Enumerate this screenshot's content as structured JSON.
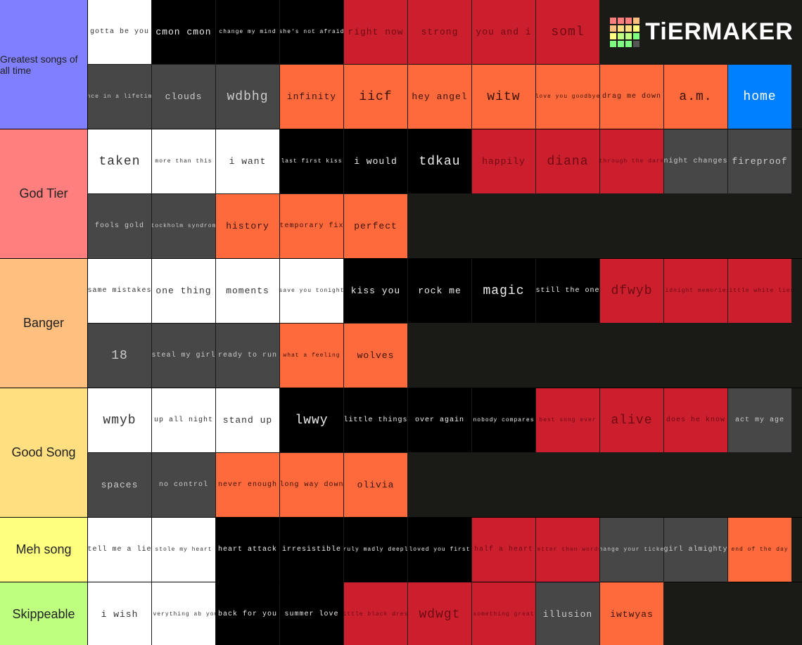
{
  "logo": "TiERMAKER",
  "tiers": [
    {
      "label": "Greatest songs of all time",
      "color": "#7f7fff",
      "items": [
        {
          "label": "gotta be you",
          "bg": "#ffffff"
        },
        {
          "label": "cmon cmon",
          "bg": "#000000"
        },
        {
          "label": "change my mind",
          "bg": "#000000"
        },
        {
          "label": "she's not afraid",
          "bg": "#000000"
        },
        {
          "label": "right now",
          "bg": "#cc1f2e"
        },
        {
          "label": "strong",
          "bg": "#cc1f2e"
        },
        {
          "label": "you and i",
          "bg": "#cc1f2e"
        },
        {
          "label": "soml",
          "bg": "#cc1f2e"
        },
        {
          "label": "once in a lifetime",
          "bg": "#474747"
        },
        {
          "label": "clouds",
          "bg": "#474747"
        },
        {
          "label": "wdbhg",
          "bg": "#474747"
        },
        {
          "label": "infinity",
          "bg": "#ff6a3d"
        },
        {
          "label": "iicf",
          "bg": "#ff6a3d"
        },
        {
          "label": "hey angel",
          "bg": "#ff6a3d"
        },
        {
          "label": "witw",
          "bg": "#ff6a3d"
        },
        {
          "label": "love you goodbye",
          "bg": "#ff6a3d"
        },
        {
          "label": "drag me down",
          "bg": "#ff6a3d"
        },
        {
          "label": "a.m.",
          "bg": "#ff6a3d"
        },
        {
          "label": "home",
          "bg": "#0080ff"
        }
      ]
    },
    {
      "label": "God Tier",
      "color": "#ff7f7f",
      "items": [
        {
          "label": "taken",
          "bg": "#ffffff"
        },
        {
          "label": "more than this",
          "bg": "#ffffff"
        },
        {
          "label": "i want",
          "bg": "#ffffff"
        },
        {
          "label": "last first kiss",
          "bg": "#000000"
        },
        {
          "label": "i would",
          "bg": "#000000"
        },
        {
          "label": "tdkau",
          "bg": "#000000"
        },
        {
          "label": "happily",
          "bg": "#cc1f2e"
        },
        {
          "label": "diana",
          "bg": "#cc1f2e"
        },
        {
          "label": "through the dark",
          "bg": "#cc1f2e"
        },
        {
          "label": "night changes",
          "bg": "#474747"
        },
        {
          "label": "fireproof",
          "bg": "#474747"
        },
        {
          "label": "fools gold",
          "bg": "#474747"
        },
        {
          "label": "stockholm syndrome",
          "bg": "#474747"
        },
        {
          "label": "history",
          "bg": "#ff6a3d"
        },
        {
          "label": "temporary fix",
          "bg": "#ff6a3d"
        },
        {
          "label": "perfect",
          "bg": "#ff6a3d"
        }
      ]
    },
    {
      "label": "Banger",
      "color": "#ffbf7f",
      "items": [
        {
          "label": "same mistakes",
          "bg": "#ffffff"
        },
        {
          "label": "one thing",
          "bg": "#ffffff"
        },
        {
          "label": "moments",
          "bg": "#ffffff"
        },
        {
          "label": "save you tonight",
          "bg": "#ffffff"
        },
        {
          "label": "kiss you",
          "bg": "#000000"
        },
        {
          "label": "rock me",
          "bg": "#000000"
        },
        {
          "label": "magic",
          "bg": "#000000"
        },
        {
          "label": "still the one",
          "bg": "#000000"
        },
        {
          "label": "dfwyb",
          "bg": "#cc1f2e"
        },
        {
          "label": "midnight memories",
          "bg": "#cc1f2e"
        },
        {
          "label": "little white lies",
          "bg": "#cc1f2e"
        },
        {
          "label": "18",
          "bg": "#474747"
        },
        {
          "label": "steal my girl",
          "bg": "#474747"
        },
        {
          "label": "ready to run",
          "bg": "#474747"
        },
        {
          "label": "what a feeling",
          "bg": "#ff6a3d"
        },
        {
          "label": "wolves",
          "bg": "#ff6a3d"
        }
      ]
    },
    {
      "label": "Good Song",
      "color": "#ffdf7f",
      "items": [
        {
          "label": "wmyb",
          "bg": "#ffffff"
        },
        {
          "label": "up all night",
          "bg": "#ffffff"
        },
        {
          "label": "stand up",
          "bg": "#ffffff"
        },
        {
          "label": "lwwy",
          "bg": "#000000"
        },
        {
          "label": "little things",
          "bg": "#000000"
        },
        {
          "label": "over again",
          "bg": "#000000"
        },
        {
          "label": "nobody compares",
          "bg": "#000000"
        },
        {
          "label": "best song ever",
          "bg": "#cc1f2e"
        },
        {
          "label": "alive",
          "bg": "#cc1f2e"
        },
        {
          "label": "does he know",
          "bg": "#cc1f2e"
        },
        {
          "label": "act my age",
          "bg": "#474747"
        },
        {
          "label": "spaces",
          "bg": "#474747"
        },
        {
          "label": "no control",
          "bg": "#474747"
        },
        {
          "label": "never enough",
          "bg": "#ff6a3d"
        },
        {
          "label": "long way down",
          "bg": "#ff6a3d"
        },
        {
          "label": "olivia",
          "bg": "#ff6a3d"
        }
      ]
    },
    {
      "label": "Meh song",
      "color": "#ffff7f",
      "items": [
        {
          "label": "tell me a lie",
          "bg": "#ffffff"
        },
        {
          "label": "stole my heart",
          "bg": "#ffffff"
        },
        {
          "label": "heart attack",
          "bg": "#000000"
        },
        {
          "label": "irresistible",
          "bg": "#000000"
        },
        {
          "label": "truly madly deeply",
          "bg": "#000000"
        },
        {
          "label": "loved you first",
          "bg": "#000000"
        },
        {
          "label": "half a heart",
          "bg": "#cc1f2e"
        },
        {
          "label": "better than words",
          "bg": "#cc1f2e"
        },
        {
          "label": "change your ticket",
          "bg": "#474747"
        },
        {
          "label": "girl almighty",
          "bg": "#474747"
        },
        {
          "label": "end of the day",
          "bg": "#ff6a3d"
        }
      ]
    },
    {
      "label": "Skippeable",
      "color": "#bfff7f",
      "items": [
        {
          "label": "i wish",
          "bg": "#ffffff"
        },
        {
          "label": "everything ab you",
          "bg": "#ffffff"
        },
        {
          "label": "back for you",
          "bg": "#000000"
        },
        {
          "label": "summer love",
          "bg": "#000000"
        },
        {
          "label": "little black dress",
          "bg": "#cc1f2e"
        },
        {
          "label": "wdwgt",
          "bg": "#cc1f2e"
        },
        {
          "label": "something great",
          "bg": "#cc1f2e"
        },
        {
          "label": "illusion",
          "bg": "#474747"
        },
        {
          "label": "iwtwyas",
          "bg": "#ff6a3d"
        }
      ]
    }
  ]
}
